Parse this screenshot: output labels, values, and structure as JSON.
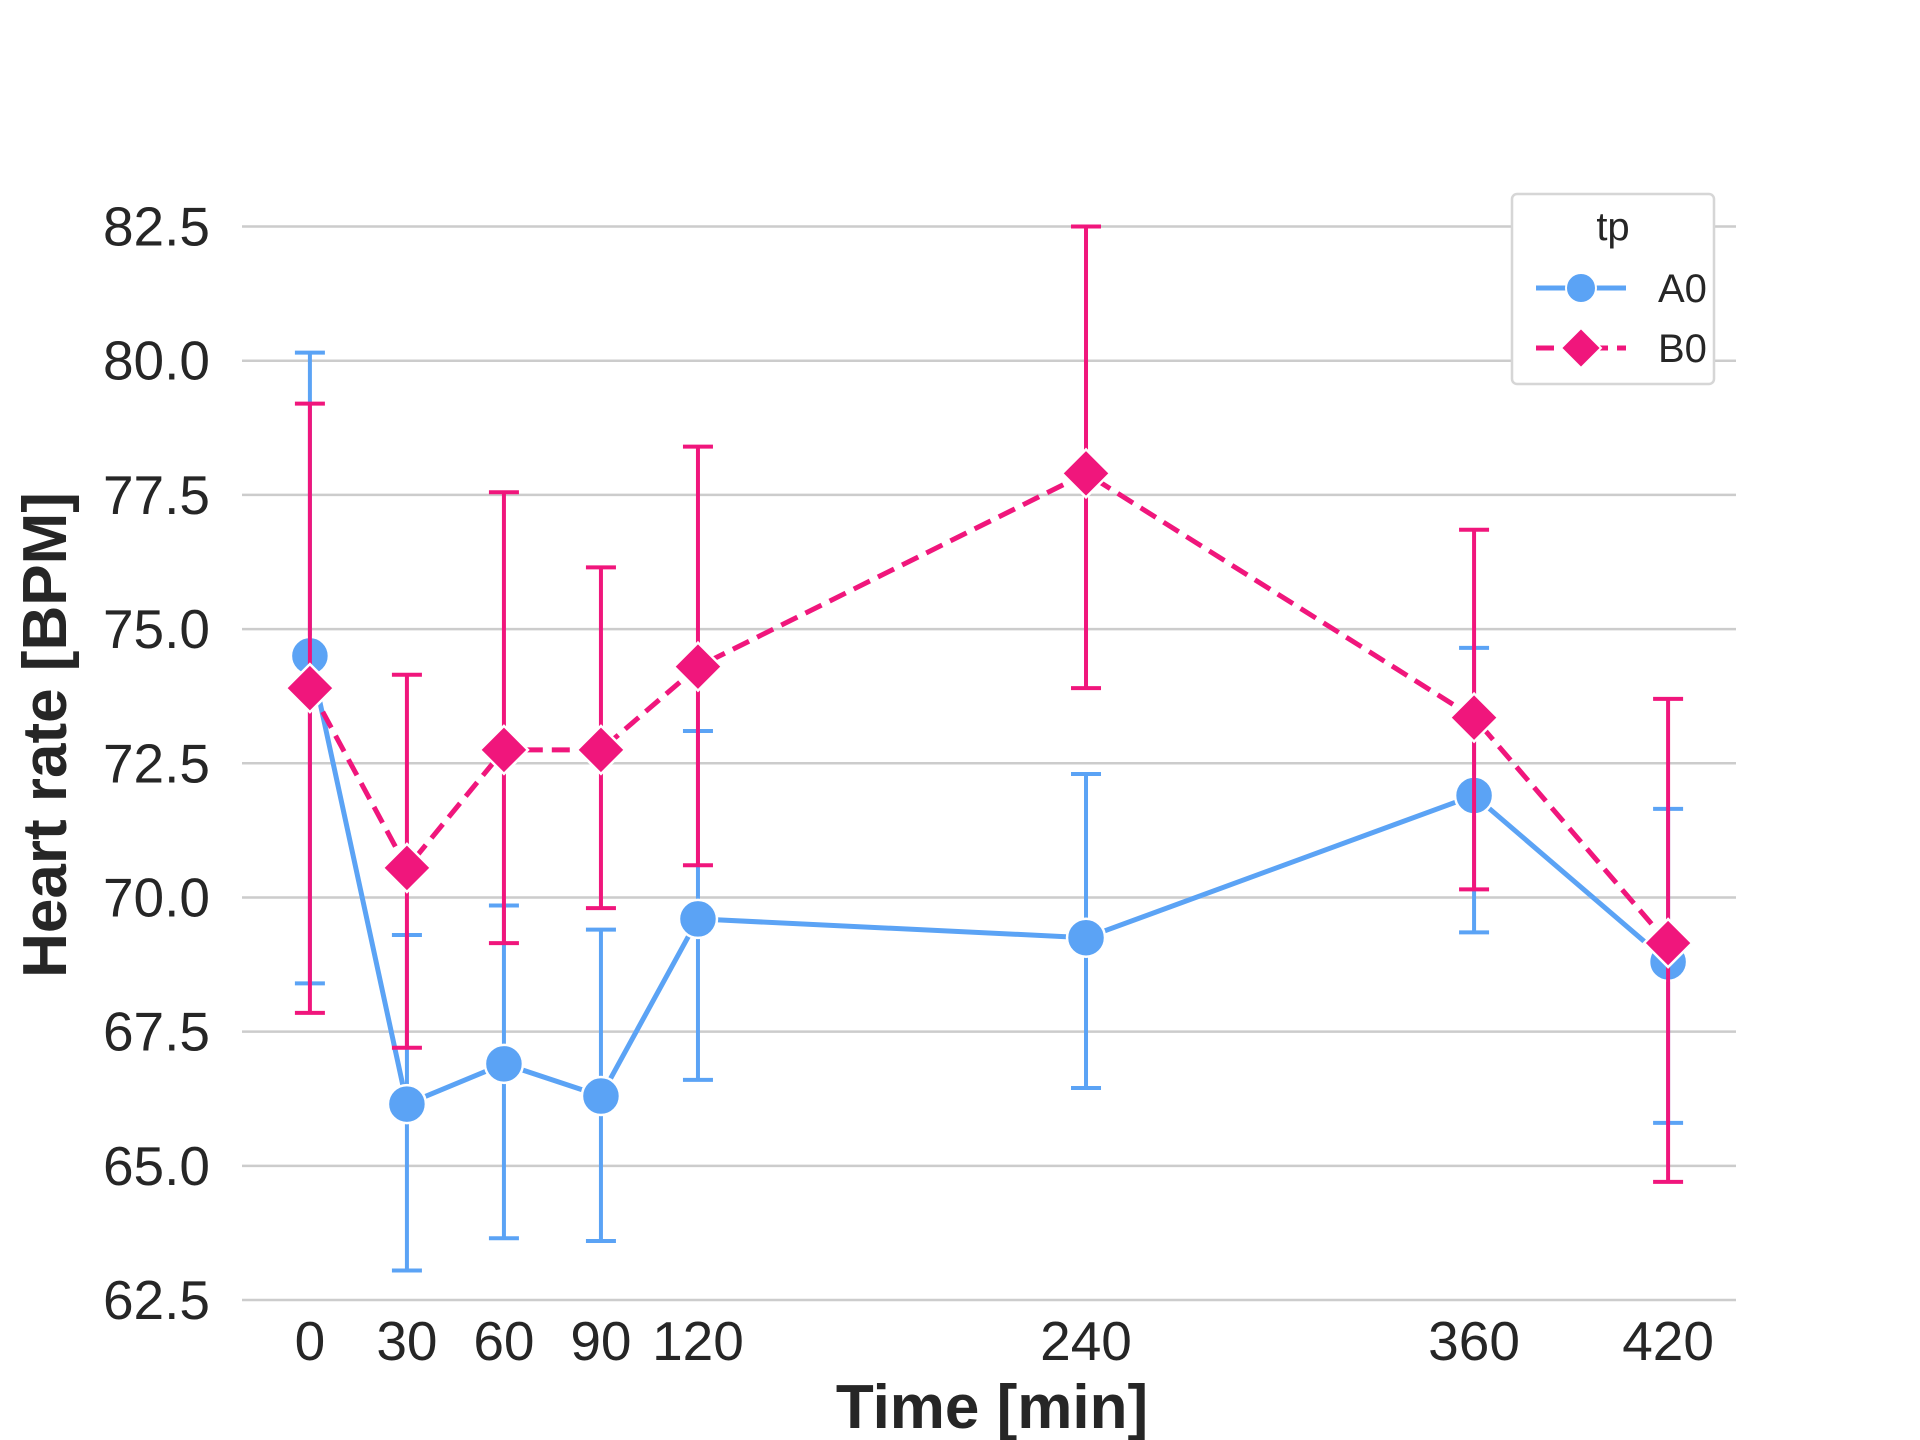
{
  "chart_data": {
    "type": "line",
    "title": "",
    "xlabel": "Time [min]",
    "ylabel": "Heart rate [BPM]",
    "x": [
      0,
      30,
      60,
      90,
      120,
      240,
      360,
      420
    ],
    "xlim": [
      -21,
      441
    ],
    "ylim": [
      62.5,
      84.0
    ],
    "yticks": [
      62.5,
      65.0,
      67.5,
      70.0,
      72.5,
      75.0,
      77.5,
      80.0,
      82.5
    ],
    "ytick_labels": [
      "62.5",
      "65.0",
      "67.5",
      "70.0",
      "72.5",
      "75.0",
      "77.5",
      "80.0",
      "82.5"
    ],
    "xticks": [
      0,
      30,
      60,
      90,
      120,
      240,
      360,
      420
    ],
    "xtick_labels": [
      "0",
      "30",
      "60",
      "90",
      "120",
      "240",
      "360",
      "420"
    ],
    "grid": "horizontal",
    "legend": {
      "title": "tp",
      "position": "top-right"
    },
    "series": [
      {
        "name": "A0",
        "color": "#5ba3f5",
        "marker": "circle",
        "dash": "solid",
        "values": [
          74.5,
          66.15,
          66.9,
          66.3,
          69.6,
          69.25,
          71.9,
          68.8
        ],
        "err_low": [
          68.4,
          63.05,
          63.65,
          63.6,
          66.6,
          66.45,
          69.35,
          65.8
        ],
        "err_high": [
          80.15,
          69.3,
          69.85,
          69.4,
          73.1,
          72.3,
          74.65,
          71.65
        ]
      },
      {
        "name": "B0",
        "color": "#f0167c",
        "marker": "diamond",
        "dash": "dashed",
        "values": [
          73.9,
          70.55,
          72.75,
          72.75,
          74.3,
          77.9,
          73.35,
          69.15
        ],
        "err_low": [
          67.85,
          67.2,
          69.15,
          69.8,
          70.6,
          73.9,
          70.15,
          64.7
        ],
        "err_high": [
          79.2,
          74.15,
          77.55,
          76.15,
          78.4,
          82.5,
          76.85,
          73.7
        ]
      }
    ]
  }
}
